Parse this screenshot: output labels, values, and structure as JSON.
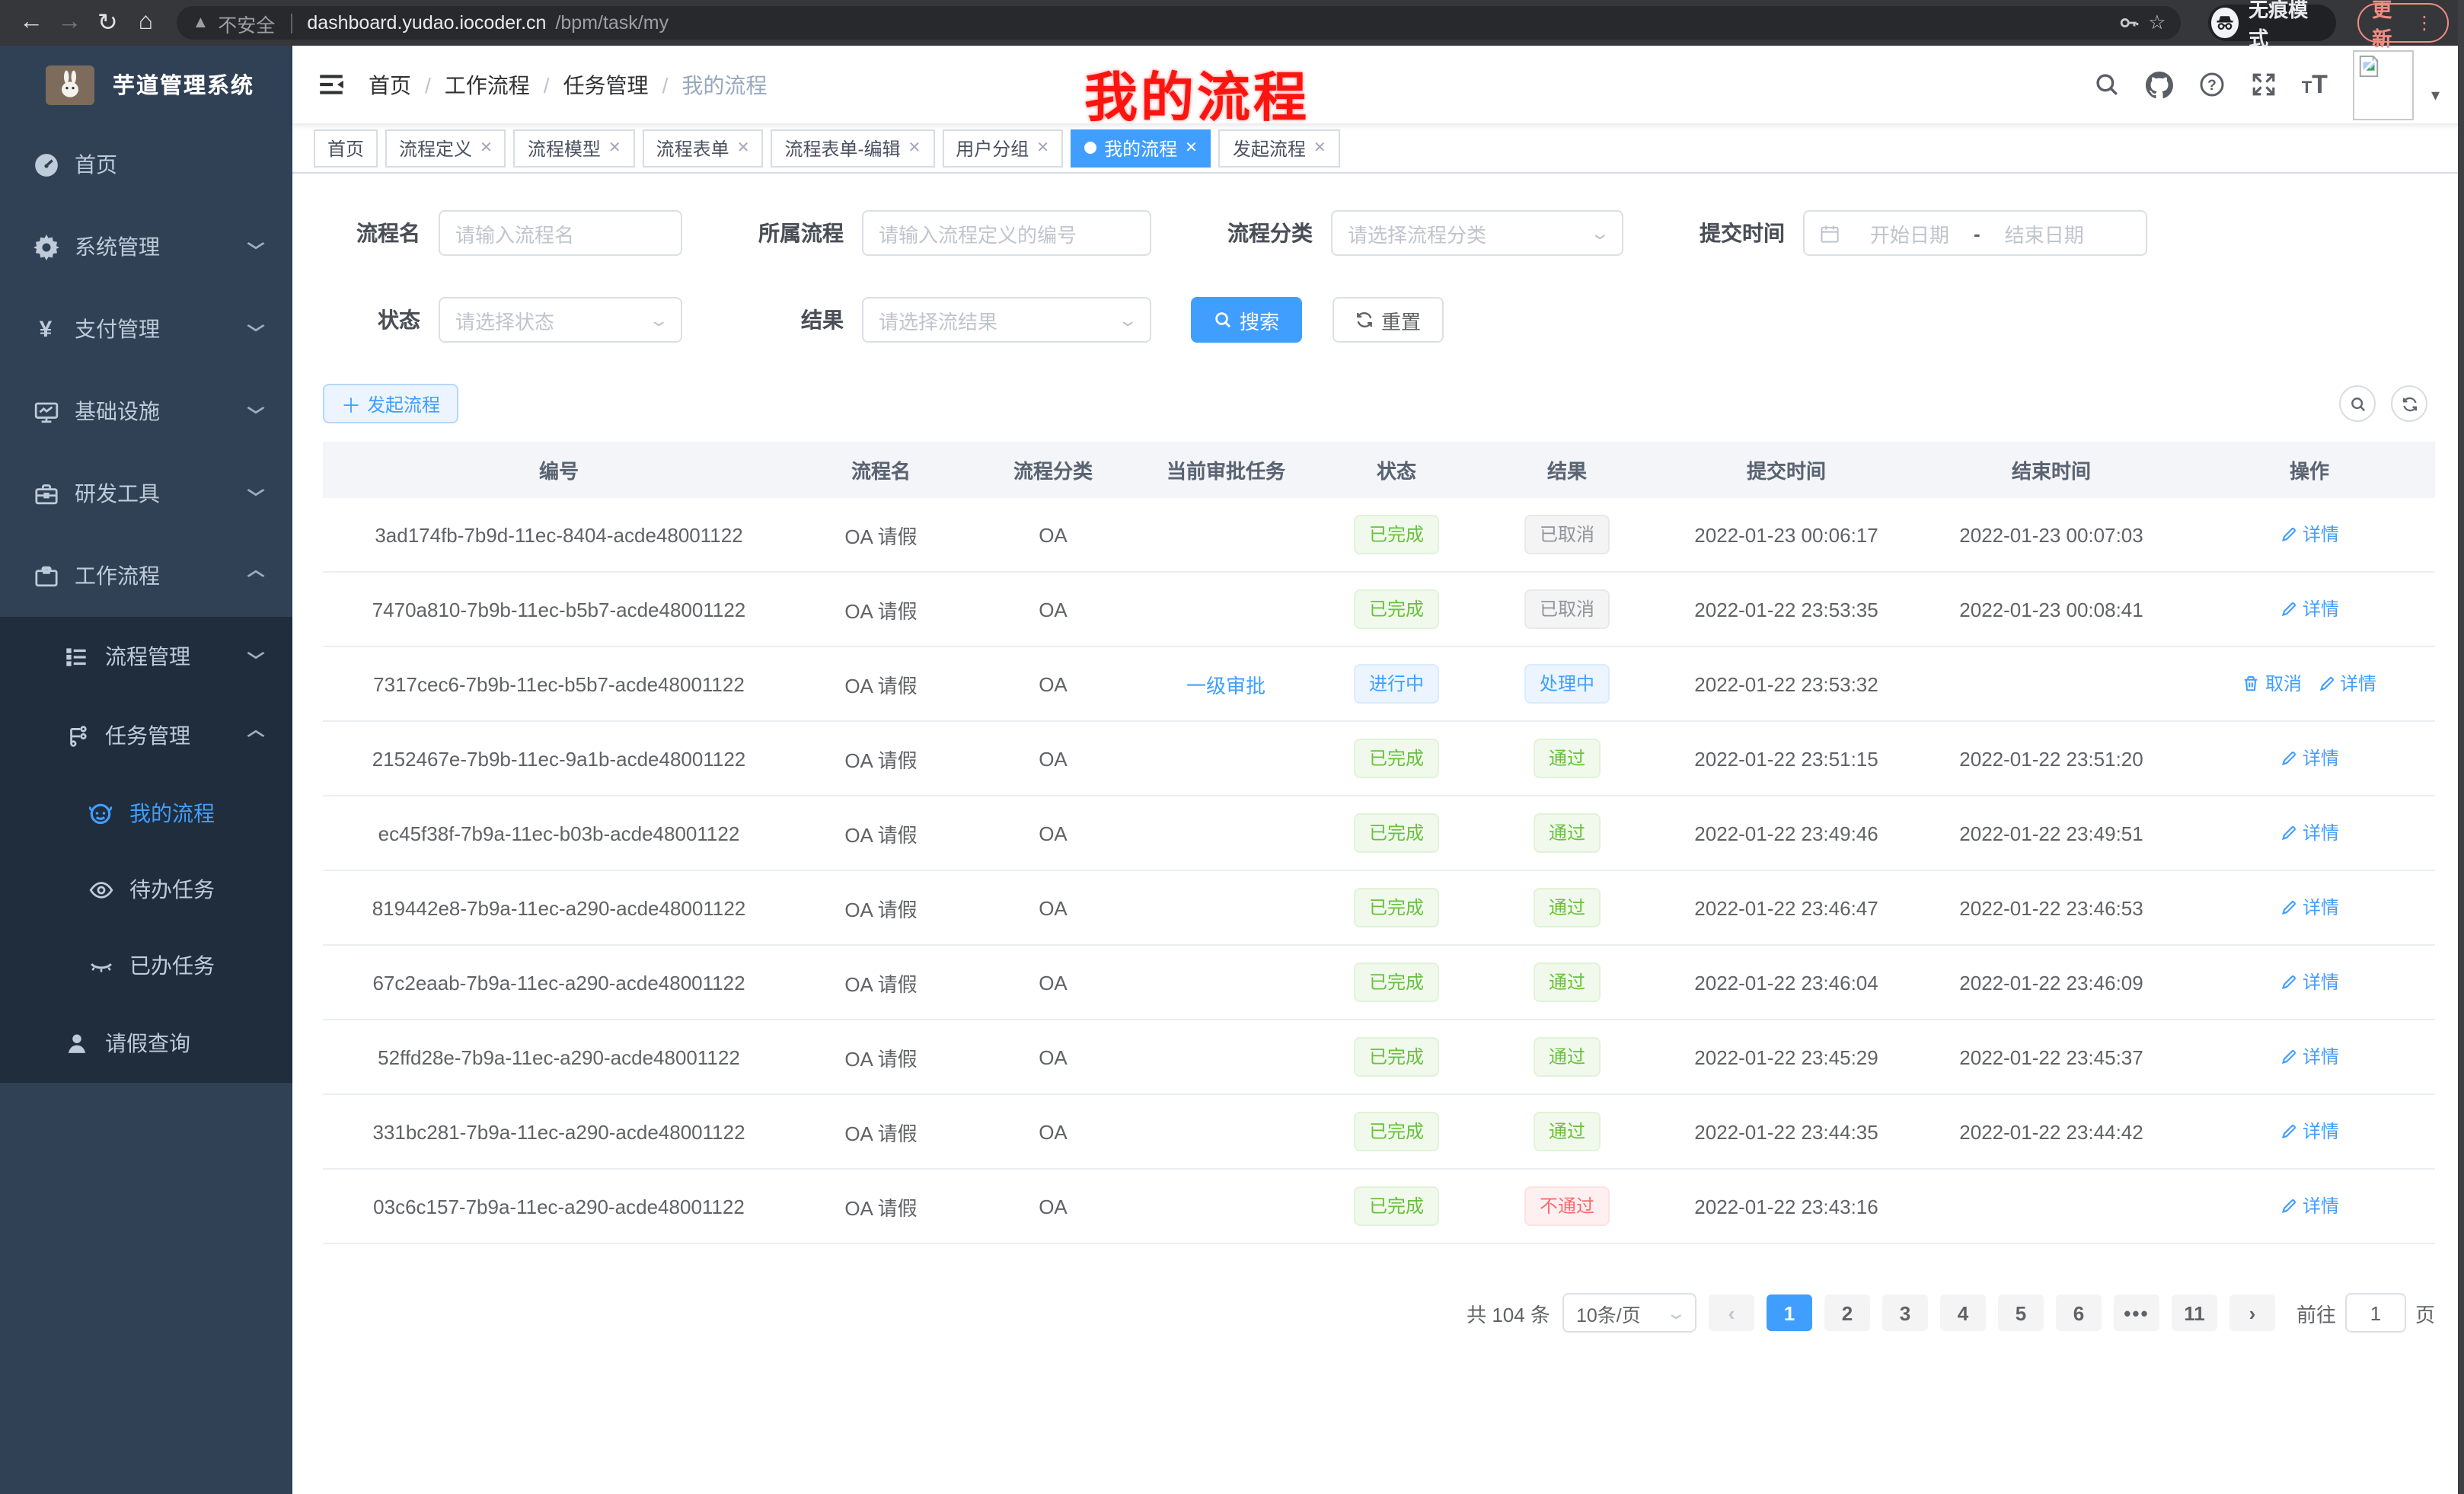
{
  "browser": {
    "insecure_label": "不安全",
    "url_host": "dashboard.yudao.iocoder.cn",
    "url_path": "/bpm/task/my",
    "incognito_label": "无痕模式",
    "update_label": "更新",
    "nav_icons": [
      "back-icon",
      "forward-icon",
      "reload-icon",
      "home-icon",
      "warning-icon",
      "key-icon",
      "star-icon",
      "incognito-icon",
      "kebab-menu-icon"
    ]
  },
  "sidebar": {
    "title": "芋道管理系统",
    "logo_icon": "rabbit-avatar",
    "items": [
      {
        "label": "首页",
        "icon": "dashboard-icon",
        "chevron": ""
      },
      {
        "label": "系统管理",
        "icon": "gear-icon",
        "chevron": "down"
      },
      {
        "label": "支付管理",
        "icon": "yen-icon",
        "chevron": "down"
      },
      {
        "label": "基础设施",
        "icon": "monitor-icon",
        "chevron": "down"
      },
      {
        "label": "研发工具",
        "icon": "toolbox-icon",
        "chevron": "down"
      },
      {
        "label": "工作流程",
        "icon": "briefcase-icon",
        "chevron": "up"
      }
    ],
    "submenu": [
      {
        "label": "流程管理",
        "icon": "tree-list-icon",
        "chevron": "down",
        "level": 2,
        "active": false
      },
      {
        "label": "任务管理",
        "icon": "flow-icon",
        "chevron": "up",
        "level": 2,
        "active": false
      },
      {
        "label": "我的流程",
        "icon": "face-icon",
        "chevron": "",
        "level": 3,
        "active": true
      },
      {
        "label": "待办任务",
        "icon": "eye-icon",
        "chevron": "",
        "level": 3,
        "active": false
      },
      {
        "label": "已办任务",
        "icon": "eye-closed-icon",
        "chevron": "",
        "level": 3,
        "active": false
      },
      {
        "label": "请假查询",
        "icon": "user-icon",
        "chevron": "",
        "level": 2,
        "active": false
      }
    ]
  },
  "navbar": {
    "breadcrumb": [
      "首页",
      "工作流程",
      "任务管理",
      "我的流程"
    ],
    "right_icons": [
      "search-icon",
      "github-icon",
      "question-icon",
      "fullscreen-icon",
      "font-size-icon",
      "avatar-broken-image",
      "chevron-down-icon"
    ],
    "annotation": "我的流程",
    "annotation_color": "#fb1510"
  },
  "tabs": [
    {
      "label": "首页",
      "closable": false,
      "active": false
    },
    {
      "label": "流程定义",
      "closable": true,
      "active": false
    },
    {
      "label": "流程模型",
      "closable": true,
      "active": false
    },
    {
      "label": "流程表单",
      "closable": true,
      "active": false
    },
    {
      "label": "流程表单-编辑",
      "closable": true,
      "active": false
    },
    {
      "label": "用户分组",
      "closable": true,
      "active": false
    },
    {
      "label": "我的流程",
      "closable": true,
      "active": true
    },
    {
      "label": "发起流程",
      "closable": true,
      "active": false
    }
  ],
  "filters": {
    "name_label": "流程名",
    "name_placeholder": "请输入流程名",
    "definition_label": "所属流程",
    "definition_placeholder": "请输入流程定义的编号",
    "category_label": "流程分类",
    "category_placeholder": "请选择流程分类",
    "time_label": "提交时间",
    "date_start_placeholder": "开始日期",
    "date_separator": "-",
    "date_end_placeholder": "结束日期",
    "status_label": "状态",
    "status_placeholder": "请选择状态",
    "result_label": "结果",
    "result_placeholder": "请选择流结果",
    "search_label": "搜索",
    "reset_label": "重置"
  },
  "toolbar": {
    "create_label": "发起流程",
    "right_icons": [
      "search-circle-icon",
      "refresh-circle-icon"
    ]
  },
  "table": {
    "headers": [
      "编号",
      "流程名",
      "流程分类",
      "当前审批任务",
      "状态",
      "结果",
      "提交时间",
      "结束时间",
      "操作"
    ],
    "action_labels": {
      "detail": "详情",
      "cancel": "取消"
    },
    "rows": [
      {
        "id": "3ad174fb-7b9d-11ec-8404-acde48001122",
        "name": "OA 请假",
        "category": "OA",
        "task": "",
        "status": {
          "label": "已完成",
          "type": "success"
        },
        "result": {
          "label": "已取消",
          "type": "info"
        },
        "submit": "2022-01-23 00:06:17",
        "end": "2022-01-23 00:07:03",
        "actions": [
          "detail"
        ]
      },
      {
        "id": "7470a810-7b9b-11ec-b5b7-acde48001122",
        "name": "OA 请假",
        "category": "OA",
        "task": "",
        "status": {
          "label": "已完成",
          "type": "success"
        },
        "result": {
          "label": "已取消",
          "type": "info"
        },
        "submit": "2022-01-22 23:53:35",
        "end": "2022-01-23 00:08:41",
        "actions": [
          "detail"
        ]
      },
      {
        "id": "7317cec6-7b9b-11ec-b5b7-acde48001122",
        "name": "OA 请假",
        "category": "OA",
        "task": "一级审批",
        "status": {
          "label": "进行中",
          "type": "primary"
        },
        "result": {
          "label": "处理中",
          "type": "primary"
        },
        "submit": "2022-01-22 23:53:32",
        "end": "",
        "actions": [
          "cancel",
          "detail"
        ]
      },
      {
        "id": "2152467e-7b9b-11ec-9a1b-acde48001122",
        "name": "OA 请假",
        "category": "OA",
        "task": "",
        "status": {
          "label": "已完成",
          "type": "success"
        },
        "result": {
          "label": "通过",
          "type": "success"
        },
        "submit": "2022-01-22 23:51:15",
        "end": "2022-01-22 23:51:20",
        "actions": [
          "detail"
        ]
      },
      {
        "id": "ec45f38f-7b9a-11ec-b03b-acde48001122",
        "name": "OA 请假",
        "category": "OA",
        "task": "",
        "status": {
          "label": "已完成",
          "type": "success"
        },
        "result": {
          "label": "通过",
          "type": "success"
        },
        "submit": "2022-01-22 23:49:46",
        "end": "2022-01-22 23:49:51",
        "actions": [
          "detail"
        ]
      },
      {
        "id": "819442e8-7b9a-11ec-a290-acde48001122",
        "name": "OA 请假",
        "category": "OA",
        "task": "",
        "status": {
          "label": "已完成",
          "type": "success"
        },
        "result": {
          "label": "通过",
          "type": "success"
        },
        "submit": "2022-01-22 23:46:47",
        "end": "2022-01-22 23:46:53",
        "actions": [
          "detail"
        ]
      },
      {
        "id": "67c2eaab-7b9a-11ec-a290-acde48001122",
        "name": "OA 请假",
        "category": "OA",
        "task": "",
        "status": {
          "label": "已完成",
          "type": "success"
        },
        "result": {
          "label": "通过",
          "type": "success"
        },
        "submit": "2022-01-22 23:46:04",
        "end": "2022-01-22 23:46:09",
        "actions": [
          "detail"
        ]
      },
      {
        "id": "52ffd28e-7b9a-11ec-a290-acde48001122",
        "name": "OA 请假",
        "category": "OA",
        "task": "",
        "status": {
          "label": "已完成",
          "type": "success"
        },
        "result": {
          "label": "通过",
          "type": "success"
        },
        "submit": "2022-01-22 23:45:29",
        "end": "2022-01-22 23:45:37",
        "actions": [
          "detail"
        ]
      },
      {
        "id": "331bc281-7b9a-11ec-a290-acde48001122",
        "name": "OA 请假",
        "category": "OA",
        "task": "",
        "status": {
          "label": "已完成",
          "type": "success"
        },
        "result": {
          "label": "通过",
          "type": "success"
        },
        "submit": "2022-01-22 23:44:35",
        "end": "2022-01-22 23:44:42",
        "actions": [
          "detail"
        ]
      },
      {
        "id": "03c6c157-7b9a-11ec-a290-acde48001122",
        "name": "OA 请假",
        "category": "OA",
        "task": "",
        "status": {
          "label": "已完成",
          "type": "success"
        },
        "result": {
          "label": "不通过",
          "type": "danger"
        },
        "submit": "2022-01-22 23:43:16",
        "end": "",
        "actions": [
          "detail"
        ]
      }
    ]
  },
  "pagination": {
    "total_label": "共 104 条",
    "page_size": "10条/页",
    "pages": [
      "1",
      "2",
      "3",
      "4",
      "5",
      "6",
      "...",
      "11"
    ],
    "current": "1",
    "goto_label": "前往",
    "goto_value": "1",
    "goto_suffix": "页"
  },
  "colors": {
    "accent": "#409eff",
    "success": "#67c23a",
    "info": "#909399",
    "danger": "#f56c6c",
    "sidebar_bg": "#304156",
    "submenu_bg": "#1f2d3d",
    "sidebar_text": "#bfcbd9",
    "chrome_bg": "#36373b",
    "update_red": "#f28b82"
  }
}
